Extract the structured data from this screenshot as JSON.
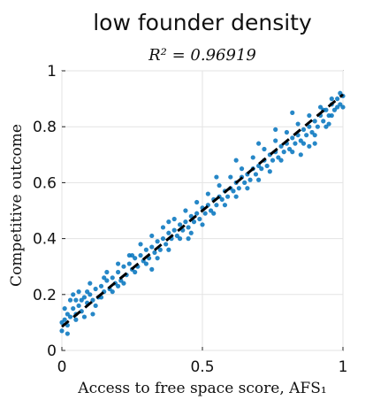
{
  "figure": {
    "heading": "low founder density"
  },
  "chart_data": {
    "type": "scatter",
    "title": "R² = 0.96919",
    "xlabel": "Access to free space score, AFS₁",
    "ylabel": "Competitive outcome",
    "xlim": [
      0,
      1
    ],
    "ylim": [
      0,
      1
    ],
    "x_ticks": [
      "0",
      "0.5",
      "1"
    ],
    "y_ticks": [
      "0",
      "0.2",
      "0.4",
      "0.6",
      "0.8",
      "1"
    ],
    "grid": true,
    "legend": "none",
    "marker_color": "#0072BD",
    "fit_color": "#000000",
    "fit_line": {
      "style": "dashed",
      "x": [
        0,
        1
      ],
      "y": [
        0.085,
        0.915
      ]
    },
    "series": [
      {
        "points": [
          [
            0.0,
            0.07
          ],
          [
            0.0,
            0.1
          ],
          [
            0.01,
            0.11
          ],
          [
            0.02,
            0.09
          ],
          [
            0.02,
            0.13
          ],
          [
            0.03,
            0.12
          ],
          [
            0.04,
            0.15
          ],
          [
            0.05,
            0.13
          ],
          [
            0.05,
            0.18
          ],
          [
            0.06,
            0.16
          ],
          [
            0.07,
            0.14
          ],
          [
            0.08,
            0.19
          ],
          [
            0.09,
            0.17
          ],
          [
            0.1,
            0.2
          ],
          [
            0.11,
            0.18
          ],
          [
            0.12,
            0.22
          ],
          [
            0.13,
            0.19
          ],
          [
            0.14,
            0.23
          ],
          [
            0.15,
            0.21
          ],
          [
            0.16,
            0.25
          ],
          [
            0.17,
            0.22
          ],
          [
            0.18,
            0.26
          ],
          [
            0.19,
            0.24
          ],
          [
            0.2,
            0.28
          ],
          [
            0.21,
            0.25
          ],
          [
            0.22,
            0.3
          ],
          [
            0.23,
            0.27
          ],
          [
            0.24,
            0.31
          ],
          [
            0.25,
            0.29
          ],
          [
            0.26,
            0.33
          ],
          [
            0.27,
            0.3
          ],
          [
            0.28,
            0.34
          ],
          [
            0.29,
            0.32
          ],
          [
            0.3,
            0.36
          ],
          [
            0.31,
            0.33
          ],
          [
            0.32,
            0.37
          ],
          [
            0.33,
            0.35
          ],
          [
            0.34,
            0.39
          ],
          [
            0.35,
            0.36
          ],
          [
            0.36,
            0.4
          ],
          [
            0.37,
            0.38
          ],
          [
            0.38,
            0.42
          ],
          [
            0.39,
            0.4
          ],
          [
            0.4,
            0.43
          ],
          [
            0.41,
            0.41
          ],
          [
            0.42,
            0.45
          ],
          [
            0.43,
            0.43
          ],
          [
            0.44,
            0.46
          ],
          [
            0.45,
            0.44
          ],
          [
            0.46,
            0.48
          ],
          [
            0.47,
            0.46
          ],
          [
            0.48,
            0.49
          ],
          [
            0.49,
            0.47
          ],
          [
            0.5,
            0.51
          ],
          [
            0.51,
            0.49
          ],
          [
            0.52,
            0.52
          ],
          [
            0.53,
            0.5
          ],
          [
            0.54,
            0.54
          ],
          [
            0.55,
            0.52
          ],
          [
            0.56,
            0.55
          ],
          [
            0.57,
            0.54
          ],
          [
            0.58,
            0.57
          ],
          [
            0.59,
            0.55
          ],
          [
            0.6,
            0.58
          ],
          [
            0.61,
            0.57
          ],
          [
            0.62,
            0.6
          ],
          [
            0.63,
            0.58
          ],
          [
            0.64,
            0.62
          ],
          [
            0.65,
            0.6
          ],
          [
            0.66,
            0.63
          ],
          [
            0.67,
            0.61
          ],
          [
            0.68,
            0.65
          ],
          [
            0.69,
            0.63
          ],
          [
            0.7,
            0.66
          ],
          [
            0.71,
            0.65
          ],
          [
            0.72,
            0.68
          ],
          [
            0.73,
            0.66
          ],
          [
            0.74,
            0.7
          ],
          [
            0.75,
            0.68
          ],
          [
            0.76,
            0.71
          ],
          [
            0.77,
            0.69
          ],
          [
            0.78,
            0.73
          ],
          [
            0.79,
            0.71
          ],
          [
            0.8,
            0.74
          ],
          [
            0.81,
            0.72
          ],
          [
            0.82,
            0.76
          ],
          [
            0.83,
            0.74
          ],
          [
            0.84,
            0.77
          ],
          [
            0.85,
            0.75
          ],
          [
            0.86,
            0.79
          ],
          [
            0.87,
            0.77
          ],
          [
            0.88,
            0.8
          ],
          [
            0.89,
            0.78
          ],
          [
            0.9,
            0.82
          ],
          [
            0.91,
            0.8
          ],
          [
            0.92,
            0.84
          ],
          [
            0.93,
            0.82
          ],
          [
            0.94,
            0.86
          ],
          [
            0.95,
            0.84
          ],
          [
            0.96,
            0.88
          ],
          [
            0.97,
            0.86
          ],
          [
            0.98,
            0.9
          ],
          [
            0.99,
            0.88
          ],
          [
            1.0,
            0.91
          ],
          [
            0.03,
            0.18
          ],
          [
            0.04,
            0.2
          ],
          [
            0.06,
            0.21
          ],
          [
            0.08,
            0.12
          ],
          [
            0.1,
            0.24
          ],
          [
            0.12,
            0.16
          ],
          [
            0.14,
            0.19
          ],
          [
            0.16,
            0.28
          ],
          [
            0.18,
            0.21
          ],
          [
            0.2,
            0.31
          ],
          [
            0.22,
            0.24
          ],
          [
            0.24,
            0.34
          ],
          [
            0.26,
            0.28
          ],
          [
            0.28,
            0.38
          ],
          [
            0.3,
            0.31
          ],
          [
            0.32,
            0.41
          ],
          [
            0.34,
            0.33
          ],
          [
            0.36,
            0.44
          ],
          [
            0.38,
            0.36
          ],
          [
            0.4,
            0.47
          ],
          [
            0.42,
            0.4
          ],
          [
            0.44,
            0.5
          ],
          [
            0.46,
            0.42
          ],
          [
            0.48,
            0.53
          ],
          [
            0.5,
            0.45
          ],
          [
            0.52,
            0.56
          ],
          [
            0.54,
            0.49
          ],
          [
            0.56,
            0.59
          ],
          [
            0.58,
            0.52
          ],
          [
            0.6,
            0.62
          ],
          [
            0.62,
            0.55
          ],
          [
            0.64,
            0.65
          ],
          [
            0.66,
            0.58
          ],
          [
            0.68,
            0.69
          ],
          [
            0.7,
            0.61
          ],
          [
            0.72,
            0.72
          ],
          [
            0.74,
            0.64
          ],
          [
            0.76,
            0.75
          ],
          [
            0.78,
            0.68
          ],
          [
            0.8,
            0.78
          ],
          [
            0.82,
            0.71
          ],
          [
            0.84,
            0.81
          ],
          [
            0.86,
            0.74
          ],
          [
            0.88,
            0.84
          ],
          [
            0.9,
            0.77
          ],
          [
            0.92,
            0.87
          ],
          [
            0.94,
            0.8
          ],
          [
            0.96,
            0.84
          ],
          [
            0.98,
            0.87
          ],
          [
            0.99,
            0.92
          ],
          [
            0.55,
            0.62
          ],
          [
            0.62,
            0.68
          ],
          [
            0.7,
            0.74
          ],
          [
            0.76,
            0.79
          ],
          [
            0.82,
            0.85
          ],
          [
            0.85,
            0.7
          ],
          [
            0.88,
            0.73
          ],
          [
            0.9,
            0.74
          ],
          [
            0.93,
            0.86
          ],
          [
            0.95,
            0.81
          ],
          [
            0.96,
            0.9
          ],
          [
            1.0,
            0.87
          ],
          [
            0.45,
            0.4
          ],
          [
            0.38,
            0.46
          ],
          [
            0.32,
            0.29
          ],
          [
            0.25,
            0.34
          ],
          [
            0.2,
            0.23
          ],
          [
            0.15,
            0.26
          ],
          [
            0.11,
            0.13
          ],
          [
            0.07,
            0.18
          ],
          [
            0.05,
            0.11
          ],
          [
            0.01,
            0.15
          ],
          [
            0.02,
            0.06
          ],
          [
            0.09,
            0.21
          ]
        ]
      }
    ]
  }
}
